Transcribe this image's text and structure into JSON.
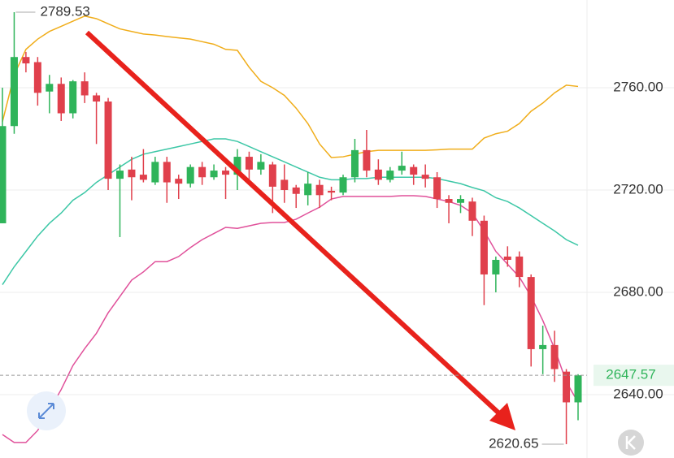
{
  "chart_data": {
    "type": "candlestick",
    "categories": [
      null,
      null,
      null,
      null,
      null,
      null,
      null,
      null,
      null,
      null,
      null,
      null,
      null,
      null,
      null,
      null,
      null,
      null,
      null,
      null,
      null,
      null,
      null,
      null,
      null,
      null,
      null,
      null,
      null,
      null,
      null,
      null,
      null,
      null,
      null,
      null,
      null,
      null,
      null,
      null,
      null,
      null,
      null,
      null,
      null,
      null,
      null,
      null,
      null,
      null
    ],
    "open": [
      2707,
      2745,
      2772,
      2770,
      2758.5,
      2761.5,
      2750,
      2762.5,
      2757,
      2754.6,
      2724.4,
      2728,
      2726,
      2723,
      2731,
      2724.4,
      2722.5,
      2729,
      2725,
      2727.6,
      2726,
      2733,
      2728,
      2730,
      2724,
      2721,
      2718,
      2722,
      2719.7,
      2719,
      2725,
      2735.6,
      2728,
      2724,
      2727.6,
      2729,
      2726,
      2725,
      2716.5,
      2715,
      2715.5,
      2708,
      2687,
      2694,
      2694,
      2686,
      2657.8,
      2659.4,
      2649,
      2637
    ],
    "high": [
      2760,
      2789.53,
      2774,
      2772,
      2765,
      2764,
      2763,
      2766,
      2758,
      2756,
      2730,
      2733,
      2736,
      2733,
      2733,
      2726,
      2730,
      2731,
      2730,
      2729,
      2736,
      2735,
      2734,
      2731,
      2730,
      2722,
      2727,
      2724,
      2721.3,
      2726,
      2740,
      2743.5,
      2732,
      2729,
      2735,
      2730,
      2730,
      2727,
      2718,
      2718,
      2717,
      2710,
      2694,
      2698,
      2696,
      2687,
      2667,
      2665,
      2650,
      2648
    ],
    "low": [
      2707,
      2742,
      2766,
      2753,
      2750,
      2747,
      2748,
      2754,
      2738,
      2720,
      2701.6,
      2716,
      2723,
      2722,
      2715,
      2716.5,
      2721,
      2722,
      2724,
      2716.5,
      2720,
      2723,
      2726,
      2711,
      2715,
      2713,
      2714,
      2713,
      2716,
      2718,
      2723,
      2725,
      2722,
      2723,
      2726,
      2722,
      2721,
      2713,
      2707,
      2711,
      2702,
      2675,
      2680,
      2690,
      2682,
      2651,
      2648,
      2645,
      2620.65,
      2630
    ],
    "close": [
      2745,
      2772,
      2769.5,
      2758,
      2761.5,
      2750,
      2762.5,
      2757,
      2754.6,
      2724.4,
      2727.6,
      2725,
      2724,
      2731,
      2723,
      2722.5,
      2729,
      2725,
      2727.6,
      2726,
      2733,
      2728,
      2731,
      2721.3,
      2720,
      2718.5,
      2722.5,
      2718,
      2719,
      2725,
      2735.6,
      2727.6,
      2724,
      2727.6,
      2729.5,
      2726,
      2724.4,
      2716.5,
      2715,
      2716.5,
      2708,
      2687,
      2692.7,
      2692.7,
      2686,
      2657.8,
      2659.4,
      2650,
      2637,
      2647.57
    ],
    "up_color": "#2fb45a",
    "down_color": "#e0404c",
    "lines": [
      {
        "color": "#f0ad1a",
        "values": [
          2746.7,
          2765,
          2775,
          2779,
          2782,
          2784,
          2786,
          2788,
          2787,
          2785,
          2783,
          2782,
          2781,
          2780.6,
          2780,
          2779.5,
          2779,
          2778,
          2777,
          2775,
          2774.6,
          2768,
          2762.5,
          2760,
          2757,
          2752,
          2746,
          2738,
          2732.7,
          2733,
          2734,
          2735,
          2735.5,
          2735.5,
          2735.5,
          2735.5,
          2735.5,
          2735.7,
          2736,
          2736,
          2736,
          2740.3,
          2742,
          2743,
          2746,
          2750.8,
          2754,
          2758,
          2761,
          2760.5
        ]
      },
      {
        "color": "#3cc7a6",
        "values": [
          2683,
          2690,
          2696,
          2702,
          2707,
          2711,
          2716,
          2719,
          2723,
          2726,
          2729,
          2732,
          2734,
          2735,
          2736,
          2737,
          2738,
          2739,
          2740,
          2740,
          2739,
          2737,
          2735,
          2733,
          2731,
          2729,
          2727,
          2725,
          2724,
          2724,
          2724.5,
          2724.5,
          2725,
          2725,
          2725,
          2725,
          2725,
          2724.5,
          2723.5,
          2722.5,
          2721,
          2719.7,
          2717,
          2715.5,
          2713,
          2710,
          2707,
          2704,
          2700.6,
          2698.4
        ]
      },
      {
        "color": "#e0509a",
        "values": [
          2624.4,
          2621.3,
          2621.3,
          2626,
          2634,
          2642,
          2651.4,
          2658,
          2664,
          2672,
          2678.4,
          2684.8,
          2688,
          2692,
          2692,
          2694,
          2697.5,
          2700.6,
          2703,
          2705.4,
          2705,
          2706,
          2707,
          2707.3,
          2707.3,
          2708.6,
          2711,
          2713.3,
          2716.5,
          2717.5,
          2717.5,
          2717.5,
          2717.5,
          2717.5,
          2717.8,
          2717.8,
          2717.5,
          2716.5,
          2715.5,
          2714,
          2711,
          2704,
          2696,
          2691,
          2686,
          2678.4,
          2669,
          2658,
          2645,
          2637
        ]
      }
    ],
    "ylim": [
      2615.24,
      2794.29
    ],
    "yticks": [
      {
        "value": 2640,
        "label": "2640.00"
      },
      {
        "value": 2680,
        "label": "2680.00"
      },
      {
        "value": 2720,
        "label": "2720.00"
      },
      {
        "value": 2760,
        "label": "2760.00"
      }
    ],
    "grid": true,
    "max_label": 2789.53,
    "min_label": 2620.65,
    "last_price": 2647.57,
    "last_price_color": "#2fb45a"
  }
}
